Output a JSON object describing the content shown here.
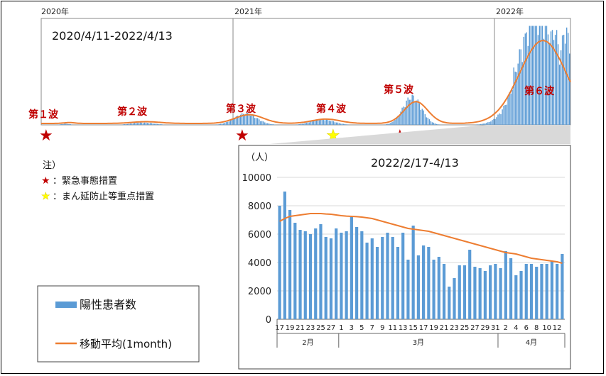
{
  "top_chart": {
    "range_label": "2020/4/11-2022/4/13",
    "years": [
      "2020年",
      "2021年",
      "2022年"
    ],
    "waves": [
      "第１波",
      "第２波",
      "第３波",
      "第４波",
      "第５波",
      "第６波"
    ]
  },
  "notes": {
    "heading": "注）",
    "items": [
      {
        "symbol": "★",
        "color": "#c00000",
        "text": "：緊急事態措置"
      },
      {
        "symbol": "★",
        "color": "#ffff00",
        "text": "：まん延防止等重点措置"
      }
    ]
  },
  "legend": {
    "bars": "陽性患者数",
    "line": "移動平均(1month)"
  },
  "colors": {
    "bar": "#5b9bd5",
    "line": "#ed7d31",
    "star_red": "#c00000",
    "star_yellow": "#ffff00"
  },
  "chart_data": {
    "type": "bar",
    "title": "2022/2/17-4/13",
    "ylabel": "（人）",
    "ylim": [
      0,
      10000
    ],
    "yticks": [
      0,
      2000,
      4000,
      6000,
      8000,
      10000
    ],
    "month_labels": [
      "2月",
      "3月",
      "4月"
    ],
    "x_tick_labels": [
      "17",
      "19",
      "21",
      "23",
      "25",
      "27",
      "1",
      "3",
      "5",
      "7",
      "9",
      "11",
      "13",
      "15",
      "17",
      "19",
      "21",
      "23",
      "25",
      "27",
      "29",
      "31",
      "2",
      "4",
      "6",
      "8",
      "10",
      "12"
    ],
    "series": [
      {
        "name": "陽性患者数",
        "type": "bar",
        "values": [
          8000,
          9000,
          7700,
          6800,
          6300,
          6200,
          6000,
          6400,
          6700,
          5800,
          5700,
          6400,
          6100,
          6200,
          7200,
          6500,
          6200,
          5400,
          5700,
          5100,
          5800,
          6100,
          5800,
          5100,
          6100,
          4200,
          6600,
          4500,
          5200,
          5100,
          4200,
          4400,
          3900,
          2300,
          2900,
          3800,
          3800,
          4900,
          3700,
          3600,
          3400,
          3800,
          3900,
          3600,
          4800,
          4300,
          3100,
          3400,
          3900,
          3900,
          3700,
          3900,
          3900,
          4100,
          3900,
          4600
        ]
      },
      {
        "name": "移動平均(1month)",
        "type": "line",
        "values": [
          6900,
          7100,
          7250,
          7300,
          7350,
          7400,
          7450,
          7450,
          7450,
          7420,
          7400,
          7350,
          7300,
          7270,
          7250,
          7230,
          7200,
          7150,
          7100,
          7000,
          6900,
          6800,
          6700,
          6600,
          6500,
          6400,
          6350,
          6300,
          6250,
          6200,
          6100,
          6000,
          5900,
          5800,
          5700,
          5600,
          5500,
          5400,
          5300,
          5200,
          5100,
          5000,
          4900,
          4800,
          4700,
          4650,
          4600,
          4500,
          4400,
          4300,
          4250,
          4200,
          4150,
          4100,
          4050,
          3950
        ]
      }
    ]
  }
}
